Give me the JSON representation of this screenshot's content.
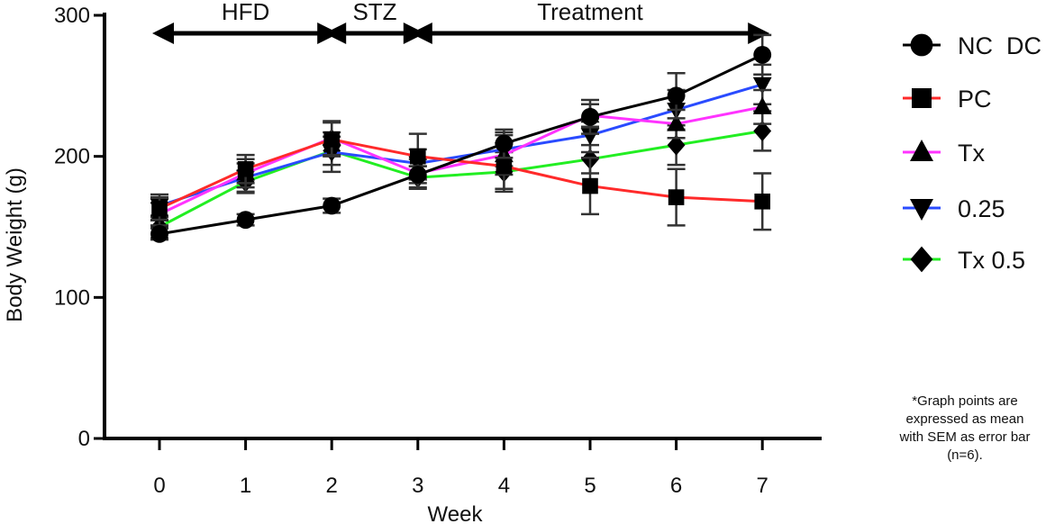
{
  "chart_data": {
    "type": "line",
    "xlabel": "Week",
    "ylabel": "Body Weight (g)",
    "x": [
      0,
      1,
      2,
      3,
      4,
      5,
      6,
      7
    ],
    "xticks": [
      "0",
      "1",
      "2",
      "3",
      "4",
      "5",
      "6",
      "7"
    ],
    "ylim": [
      0,
      300
    ],
    "yticks": [
      "0",
      "100",
      "200",
      "300"
    ],
    "grid": false,
    "legend_position": "right",
    "phases": [
      {
        "label": "HFD",
        "start": 0,
        "end": 2
      },
      {
        "label": "STZ",
        "start": 2,
        "end": 3
      },
      {
        "label": "Treatment",
        "start": 3,
        "end": 7
      }
    ],
    "series": [
      {
        "name": "NC  DC",
        "color": "#000000",
        "marker": "circle",
        "values": [
          145,
          155,
          165,
          187,
          209,
          228,
          243,
          272
        ],
        "errors": [
          4,
          4,
          5,
          6,
          10,
          12,
          16,
          14
        ]
      },
      {
        "name": "PC",
        "color": "#ff2a2a",
        "marker": "square",
        "values": [
          163,
          191,
          212,
          200,
          193,
          179,
          171,
          168
        ],
        "errors": [
          8,
          10,
          12,
          16,
          16,
          20,
          20,
          20
        ]
      },
      {
        "name": "Tx",
        "color": "#ff33ff",
        "marker": "triangle-up",
        "values": [
          159,
          188,
          213,
          188,
          201,
          229,
          223,
          235
        ],
        "errors": [
          8,
          10,
          12,
          10,
          14,
          8,
          10,
          12
        ]
      },
      {
        "name": "0.25",
        "color": "#2a4bff",
        "marker": "triangle-down",
        "values": [
          165,
          185,
          203,
          195,
          205,
          215,
          233,
          251
        ],
        "errors": [
          8,
          10,
          14,
          10,
          12,
          12,
          14,
          14
        ]
      },
      {
        "name": "Tx 0.5",
        "color": "#22ee22",
        "marker": "diamond",
        "values": [
          150,
          182,
          204,
          185,
          189,
          198,
          208,
          218
        ],
        "errors": [
          8,
          8,
          10,
          8,
          14,
          10,
          14,
          14
        ]
      }
    ]
  },
  "footnote": {
    "lines": [
      "*Graph points are",
      "expressed as mean",
      "with SEM as error bar",
      "(n=6)."
    ]
  }
}
